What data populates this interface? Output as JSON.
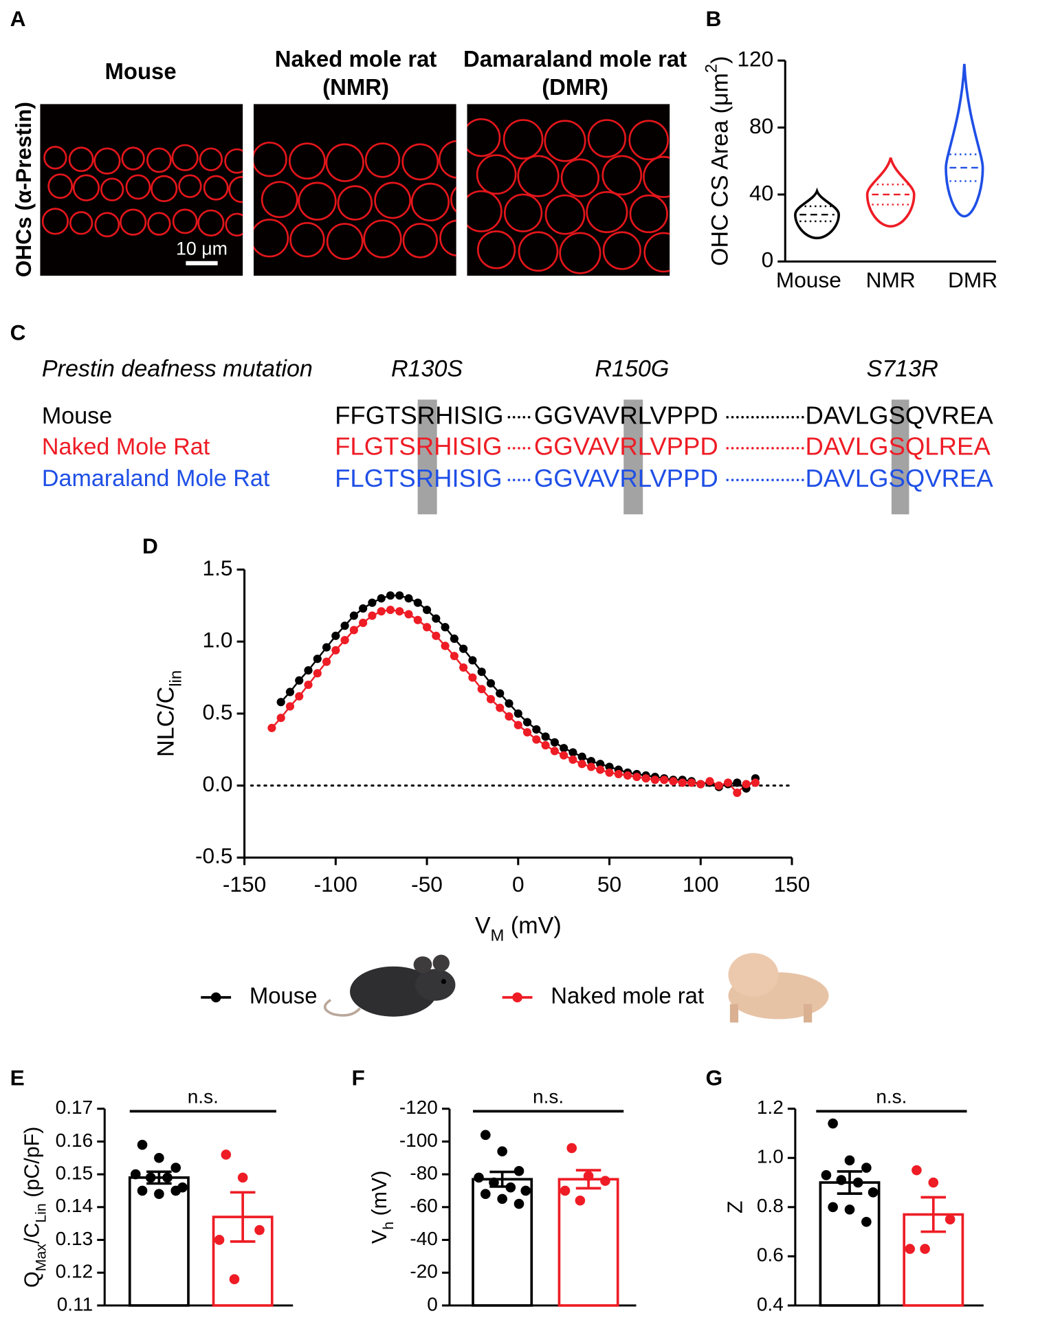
{
  "panel_a": {
    "label": "A",
    "y_label": "OHCs (α-Prestin)",
    "titles": [
      [
        "Mouse"
      ],
      [
        "Naked mole rat",
        "(NMR)"
      ],
      [
        "Damaraland mole rat",
        "(DMR)"
      ]
    ],
    "scale_bar": "10 μm"
  },
  "panel_c": {
    "label": "C",
    "heading": "Prestin deafness mutation",
    "mutations": [
      "R130S",
      "R150G",
      "S713R"
    ],
    "rows": [
      {
        "name": "Mouse",
        "color": "#000000",
        "segments": [
          "FFGTSRHISIG",
          "GGVAVRLVPPD",
          "DAVLGSQVREA"
        ]
      },
      {
        "name": "Naked Mole Rat",
        "color": "#ee1c25",
        "segments": [
          "FLGTSRHISIG",
          "GGVAVRLVPPD",
          "DAVLGSQLREA"
        ]
      },
      {
        "name": "Damaraland Mole Rat",
        "color": "#1f4fe6",
        "segments": [
          "FLGTSRHISIG",
          "GGVAVRLVPPD",
          "DAVLGSQVREA"
        ]
      }
    ]
  },
  "chart_data": [
    {
      "type": "violin",
      "panel": "B",
      "y_label": [
        "OHC CS Area (μm",
        "2",
        ")"
      ],
      "label_script": "super",
      "categories": [
        "Mouse",
        "NMR",
        "DMR"
      ],
      "colors": [
        "#000000",
        "#ee1c25",
        "#1f4fe6"
      ],
      "min": [
        14,
        21,
        27
      ],
      "q1": [
        24,
        34,
        48
      ],
      "median": [
        28,
        40,
        56
      ],
      "q3": [
        33,
        46,
        64
      ],
      "max": [
        42,
        62,
        118
      ],
      "ylim": [
        0,
        120
      ],
      "yticks": [
        0,
        40,
        80,
        120
      ]
    },
    {
      "type": "line",
      "panel": "D",
      "x_label": [
        "V",
        "M",
        " (mV)"
      ],
      "y_label": [
        "NLC/C",
        "lin"
      ],
      "label_script": "sub",
      "x": [
        -135,
        -130,
        -125,
        -120,
        -115,
        -110,
        -105,
        -100,
        -95,
        -90,
        -85,
        -80,
        -75,
        -70,
        -65,
        -60,
        -55,
        -50,
        -45,
        -40,
        -35,
        -30,
        -25,
        -20,
        -15,
        -10,
        -5,
        0,
        5,
        10,
        15,
        20,
        25,
        30,
        35,
        40,
        45,
        50,
        55,
        60,
        65,
        70,
        75,
        80,
        85,
        90,
        95,
        100,
        105,
        110,
        115,
        120,
        125,
        130
      ],
      "series": [
        {
          "name": "Mouse",
          "color": "#000000",
          "values": [
            null,
            0.58,
            0.65,
            0.73,
            0.8,
            0.88,
            0.96,
            1.04,
            1.11,
            1.18,
            1.23,
            1.27,
            1.3,
            1.32,
            1.32,
            1.3,
            1.27,
            1.22,
            1.16,
            1.1,
            1.02,
            0.95,
            0.87,
            0.79,
            0.71,
            0.64,
            0.57,
            0.5,
            0.44,
            0.39,
            0.34,
            0.3,
            0.26,
            0.23,
            0.2,
            0.17,
            0.15,
            0.13,
            0.11,
            0.09,
            0.08,
            0.07,
            0.06,
            0.05,
            0.04,
            0.04,
            0.03,
            0.01,
            0.02,
            -0.01,
            0.01,
            0.02,
            -0.02,
            0.05
          ]
        },
        {
          "name": "Naked mole rat",
          "color": "#ee1c25",
          "values": [
            0.4,
            0.47,
            0.55,
            0.62,
            0.7,
            0.78,
            0.86,
            0.94,
            1.01,
            1.08,
            1.13,
            1.18,
            1.21,
            1.22,
            1.21,
            1.19,
            1.15,
            1.1,
            1.04,
            0.97,
            0.9,
            0.82,
            0.75,
            0.67,
            0.6,
            0.54,
            0.48,
            0.42,
            0.37,
            0.32,
            0.28,
            0.24,
            0.21,
            0.18,
            0.15,
            0.13,
            0.11,
            0.09,
            0.08,
            0.07,
            0.06,
            0.05,
            0.04,
            0.04,
            0.03,
            0.02,
            0.02,
            0.01,
            0.03,
            0.0,
            0.02,
            -0.05,
            0.01,
            0.02
          ]
        }
      ],
      "xlim": [
        -150,
        150
      ],
      "xticks": [
        -150,
        -100,
        -50,
        0,
        50,
        100,
        150
      ],
      "ylim": [
        -0.5,
        1.5
      ],
      "yticks": [
        -0.5,
        {
          "value": 0,
          "label": "0.0"
        },
        0.5,
        {
          "value": 1,
          "label": "1.0"
        },
        1.5
      ],
      "hline": 0
    },
    {
      "type": "bar",
      "panel": "E",
      "y_label": [
        "Q",
        "Max",
        "/C",
        "Lin",
        " (pC/pF)"
      ],
      "label_script": "sub",
      "categories": [
        null,
        null
      ],
      "colors": [
        "#000000",
        "#ee1c25"
      ],
      "values": [
        0.149,
        0.137
      ],
      "errors": [
        0.0018,
        0.0075
      ],
      "points": [
        [
          0.159,
          0.155,
          0.152,
          0.15,
          0.149,
          0.149,
          0.146,
          0.145,
          0.144,
          0.145
        ],
        [
          0.156,
          0.149,
          0.133,
          0.13,
          0.118
        ]
      ],
      "annotation": "n.s.",
      "ylim": [
        0.11,
        0.17
      ],
      "yticks": [
        0.11,
        0.12,
        0.13,
        0.14,
        0.15,
        0.16,
        0.17
      ]
    },
    {
      "type": "bar",
      "panel": "F",
      "y_label": [
        "V",
        "h",
        " (mV)"
      ],
      "label_script": "sub",
      "categories": [
        null,
        null
      ],
      "colors": [
        "#000000",
        "#ee1c25"
      ],
      "values": [
        -77,
        -77
      ],
      "errors": [
        4.5,
        5.5
      ],
      "points": [
        [
          -104,
          -94,
          -82,
          -78,
          -75,
          -72,
          -70,
          -68,
          -65,
          -62
        ],
        [
          -96,
          -79,
          -76,
          -70,
          -64
        ]
      ],
      "annotation": "n.s.",
      "ylim": [
        0,
        -120
      ],
      "yticks": [
        0,
        -20,
        -40,
        -60,
        -80,
        -100,
        -120
      ]
    },
    {
      "type": "bar",
      "panel": "G",
      "y_label": [
        "Z"
      ],
      "categories": [
        null,
        null
      ],
      "colors": [
        "#000000",
        "#ee1c25"
      ],
      "values": [
        0.9,
        0.77
      ],
      "errors": [
        0.045,
        0.07
      ],
      "points": [
        [
          1.14,
          0.99,
          0.96,
          0.93,
          0.91,
          0.9,
          0.86,
          0.8,
          0.79,
          0.74
        ],
        [
          0.95,
          0.9,
          0.75,
          0.63,
          0.63
        ]
      ],
      "annotation": "n.s.",
      "ylim": [
        0.4,
        1.2
      ],
      "yticks": [
        0.4,
        0.6,
        0.8,
        {
          "value": 1,
          "label": "1.0"
        },
        1.2
      ]
    }
  ]
}
